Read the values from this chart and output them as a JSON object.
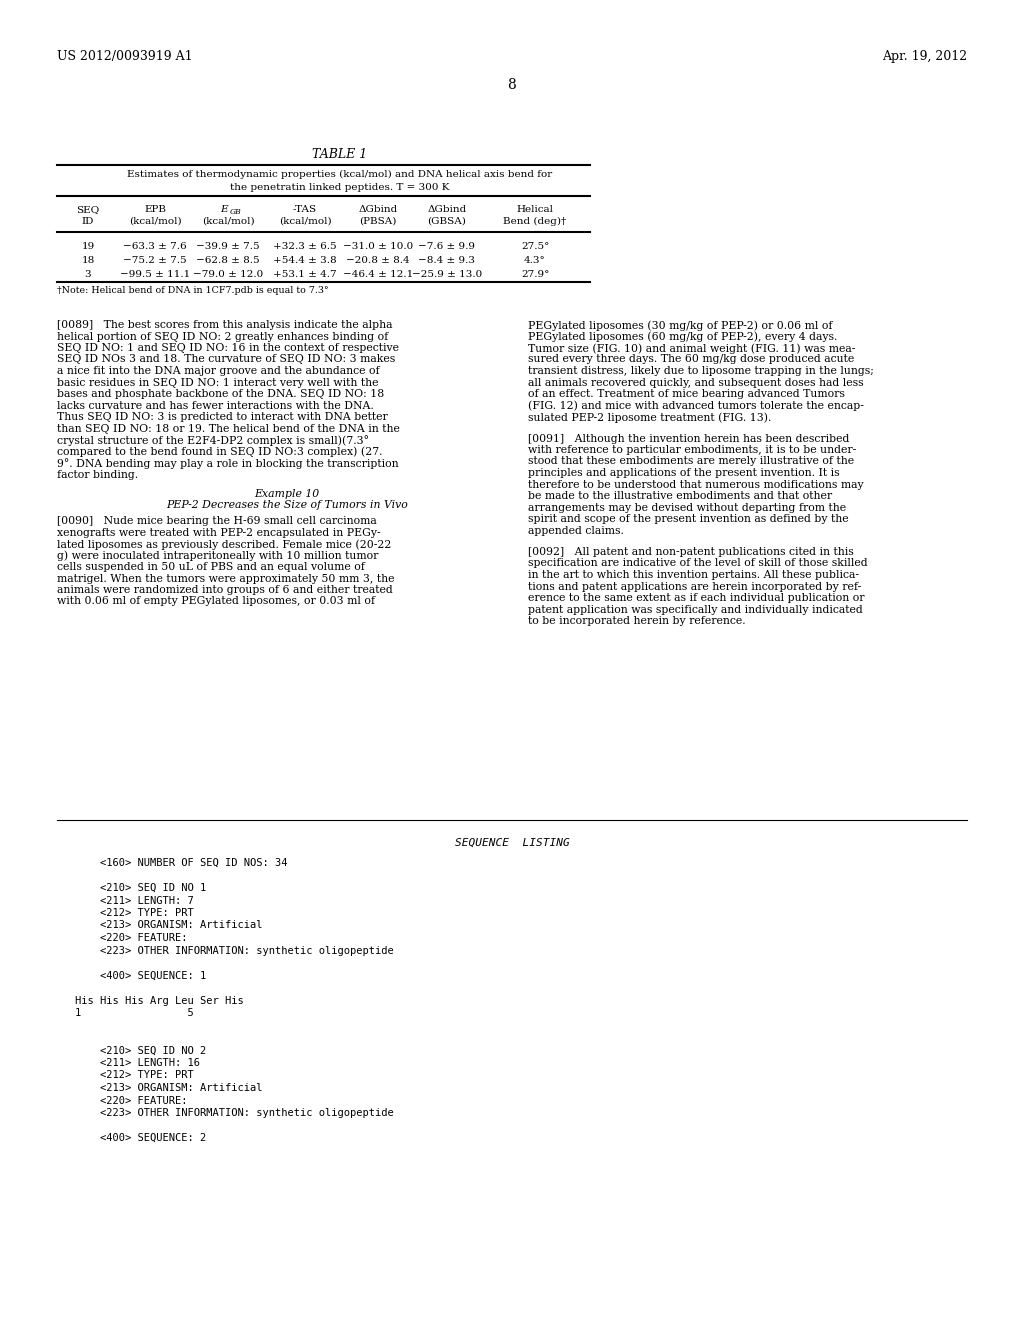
{
  "header_left": "US 2012/0093919 A1",
  "header_right": "Apr. 19, 2012",
  "page_number": "8",
  "table_title": "TABLE 1",
  "table_sub1": "Estimates of thermodynamic properties (kcal/mol) and DNA helical axis bend for",
  "table_sub2": "the penetratin linked peptides. T = 300 K",
  "col_headers_1": [
    "SEQ",
    "EPB",
    "E",
    "-TAS",
    "ΔGbind",
    "ΔGbind",
    "Helical"
  ],
  "col_headers_2": [
    "ID",
    "(kcal/mol)",
    "GB\n(kcal/mol)",
    "(kcal/mol)",
    "(PBSA)",
    "(GBSA)",
    "Bend (deg)†"
  ],
  "table_rows": [
    [
      "19",
      "−63.3 ± 7.6",
      "−39.9 ± 7.5",
      "+32.3 ± 6.5",
      "−31.0 ± 10.0",
      "−7.6 ± 9.9",
      "27.5°"
    ],
    [
      "18",
      "−75.2 ± 7.5",
      "−62.8 ± 8.5",
      "+54.4 ± 3.8",
      "−20.8 ± 8.4",
      "−8.4 ± 9.3",
      "4.3°"
    ],
    [
      "3",
      "−99.5 ± 11.1",
      "−79.0 ± 12.0",
      "+53.1 ± 4.7",
      "−46.4 ± 12.1",
      "−25.9 ± 13.0",
      "27.9°"
    ]
  ],
  "table_footnote": "†Note: Helical bend of DNA in 1CF7.pdb is equal to 7.3°",
  "para_089_left": [
    "[0089]   The best scores from this analysis indicate the alpha",
    "helical portion of SEQ ID NO: 2 greatly enhances binding of",
    "SEQ ID NO: 1 and SEQ ID NO: 16 in the context of respective",
    "SEQ ID NOs 3 and 18. The curvature of SEQ ID NO: 3 makes",
    "a nice fit into the DNA major groove and the abundance of",
    "basic residues in SEQ ID NO: 1 interact very well with the",
    "bases and phosphate backbone of the DNA. SEQ ID NO: 18",
    "lacks curvature and has fewer interactions with the DNA.",
    "Thus SEQ ID NO: 3 is predicted to interact with DNA better",
    "than SEQ ID NO: 18 or 19. The helical bend of the DNA in the",
    "crystal structure of the E2F4-DP2 complex is small)(7.3°",
    "compared to the bend found in SEQ ID NO:3 complex) (27.",
    "9°. DNA bending may play a role in blocking the transcription",
    "factor binding."
  ],
  "example10_title": "Example 10",
  "example10_subtitle": "PEP-2 Decreases the Size of Tumors in Vivo",
  "para_090_left": [
    "[0090]   Nude mice bearing the H-69 small cell carcinoma",
    "xenografts were treated with PEP-2 encapsulated in PEGy-",
    "lated liposomes as previously described. Female mice (20-22",
    "g) were inoculated intraperitoneally with 10 million tumor",
    "cells suspended in 50 uL of PBS and an equal volume of",
    "matrigel. When the tumors were approximately 50 mm 3, the",
    "animals were randomized into groups of 6 and either treated",
    "with 0.06 ml of empty PEGylated liposomes, or 0.03 ml of"
  ],
  "para_089_right": [
    "PEGylated liposomes (30 mg/kg of PEP-2) or 0.06 ml of",
    "PEGylated liposomes (60 mg/kg of PEP-2), every 4 days.",
    "Tumor size (FIG. 10) and animal weight (FIG. 11) was mea-",
    "sured every three days. The 60 mg/kg dose produced acute",
    "transient distress, likely due to liposome trapping in the lungs;",
    "all animals recovered quickly, and subsequent doses had less",
    "of an effect. Treatment of mice bearing advanced Tumors",
    "(FIG. 12) and mice with advanced tumors tolerate the encap-",
    "sulated PEP-2 liposome treatment (FIG. 13)."
  ],
  "para_091_right": [
    "[0091]   Although the invention herein has been described",
    "with reference to particular embodiments, it is to be under-",
    "stood that these embodiments are merely illustrative of the",
    "principles and applications of the present invention. It is",
    "therefore to be understood that numerous modifications may",
    "be made to the illustrative embodiments and that other",
    "arrangements may be devised without departing from the",
    "spirit and scope of the present invention as defined by the",
    "appended claims."
  ],
  "para_092_right": [
    "[0092]   All patent and non-patent publications cited in this",
    "specification are indicative of the level of skill of those skilled",
    "in the art to which this invention pertains. All these publica-",
    "tions and patent applications are herein incorporated by ref-",
    "erence to the same extent as if each individual publication or",
    "patent application was specifically and individually indicated",
    "to be incorporated herein by reference."
  ],
  "seq_listing_header": "SEQUENCE  LISTING",
  "seq_listing_lines": [
    "    <160> NUMBER OF SEQ ID NOS: 34",
    "",
    "    <210> SEQ ID NO 1",
    "    <211> LENGTH: 7",
    "    <212> TYPE: PRT",
    "    <213> ORGANISM: Artificial",
    "    <220> FEATURE:",
    "    <223> OTHER INFORMATION: synthetic oligopeptide",
    "",
    "    <400> SEQUENCE: 1",
    "",
    "His His His Arg Leu Ser His",
    "1                 5",
    "",
    "",
    "    <210> SEQ ID NO 2",
    "    <211> LENGTH: 16",
    "    <212> TYPE: PRT",
    "    <213> ORGANISM: Artificial",
    "    <220> FEATURE:",
    "    <223> OTHER INFORMATION: synthetic oligopeptide",
    "",
    "    <400> SEQUENCE: 2"
  ],
  "background_color": "#ffffff",
  "text_color": "#000000"
}
